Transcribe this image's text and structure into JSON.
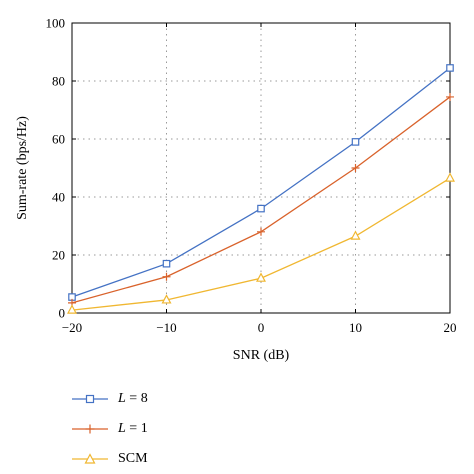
{
  "chart_data": {
    "type": "line",
    "xlabel": "SNR (dB)",
    "ylabel": "Sum-rate (bps/Hz)",
    "xlim": [
      -20,
      20
    ],
    "ylim": [
      0,
      100
    ],
    "xticks": [
      -20,
      -10,
      0,
      10,
      20
    ],
    "xtick_labels": [
      "−20",
      "−10",
      "0",
      "10",
      "20"
    ],
    "yticks": [
      0,
      20,
      40,
      60,
      80,
      100
    ],
    "ytick_labels": [
      "0",
      "20",
      "40",
      "60",
      "80",
      "100"
    ],
    "grid": true,
    "legend_position": "bottom-left, below plot",
    "x": [
      -20,
      -10,
      0,
      10,
      20
    ],
    "series": [
      {
        "name": "L = 8",
        "name_var": "L",
        "name_rest": " = 8",
        "marker": "square",
        "color": "#4472c4",
        "values": [
          5.5,
          17,
          36,
          59,
          84.5
        ]
      },
      {
        "name": "L = 1",
        "name_var": "L",
        "name_rest": " = 1",
        "marker": "plus",
        "color": "#d9622b",
        "values": [
          3.5,
          12.5,
          28,
          50,
          74.5
        ]
      },
      {
        "name": "SCM",
        "name_var": "",
        "name_rest": "SCM",
        "marker": "triangle",
        "color": "#f0b731",
        "values": [
          1,
          4.5,
          12,
          26.5,
          46.5
        ]
      }
    ]
  }
}
